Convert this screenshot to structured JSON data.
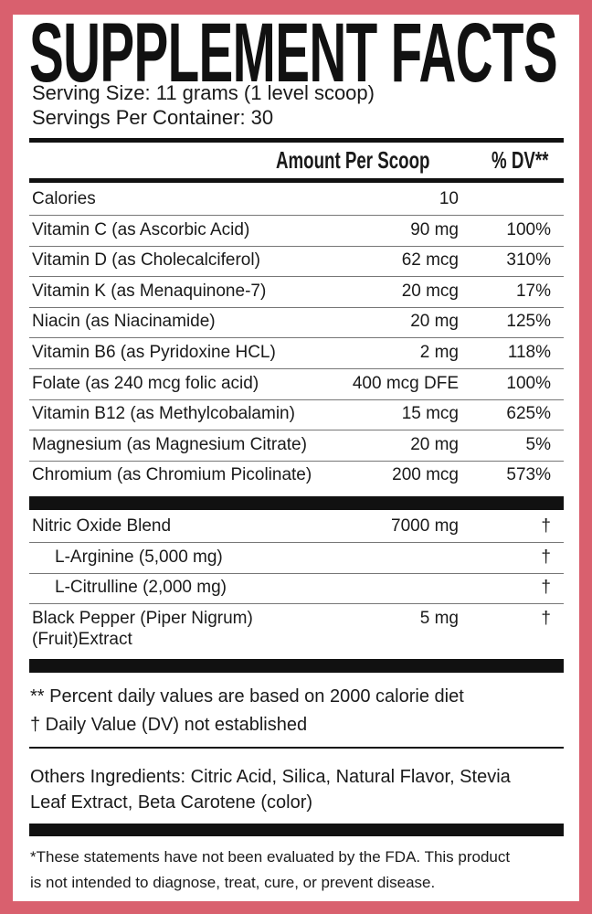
{
  "title": "SUPPLEMENT FACTS",
  "serving_size": "Serving Size: 11 grams (1 level scoop)",
  "servings_per_container": "Servings Per Container: 30",
  "header": {
    "amount": "Amount Per Scoop",
    "dv": "% DV**"
  },
  "nutrients": [
    {
      "name": "Calories",
      "amount": "10",
      "dv": ""
    },
    {
      "name": "Vitamin C (as Ascorbic Acid)",
      "amount": "90 mg",
      "dv": "100%"
    },
    {
      "name": "Vitamin D (as Cholecalciferol)",
      "amount": "62 mcg",
      "dv": "310%"
    },
    {
      "name": "Vitamin K (as Menaquinone-7)",
      "amount": "20 mcg",
      "dv": "17%"
    },
    {
      "name": "Niacin (as Niacinamide)",
      "amount": "20 mg",
      "dv": "125%"
    },
    {
      "name": "Vitamin B6 (as Pyridoxine HCL)",
      "amount": "2 mg",
      "dv": "118%"
    },
    {
      "name": "Folate (as 240 mcg folic acid)",
      "amount": "400 mcg DFE",
      "dv": "100%"
    },
    {
      "name": "Vitamin B12 (as Methylcobalamin)",
      "amount": "15 mcg",
      "dv": "625%"
    },
    {
      "name": "Magnesium (as Magnesium Citrate)",
      "amount": "20 mg",
      "dv": "5%"
    },
    {
      "name": "Chromium (as Chromium Picolinate)",
      "amount": "200 mcg",
      "dv": "573%"
    }
  ],
  "blend": [
    {
      "name": "Nitric Oxide Blend",
      "amount": "7000 mg",
      "dv": "†"
    },
    {
      "name": "L-Arginine (5,000 mg)",
      "amount": "",
      "dv": "†"
    },
    {
      "name": "L-Citrulline (2,000 mg)",
      "amount": "",
      "dv": "†"
    },
    {
      "name": "Black Pepper (Piper Nigrum)",
      "name2": "(Fruit)Extract",
      "amount": "5 mg",
      "dv": "†"
    }
  ],
  "footnotes": [
    "** Percent daily values are based on 2000 calorie diet",
    "† Daily Value (DV) not established"
  ],
  "other_ingredients": [
    "Others Ingredients: Citric Acid, Silica, Natural Flavor, Stevia",
    "Leaf Extract, Beta Carotene (color)"
  ],
  "disclaimer": [
    "*These statements have not been evaluated by the FDA. This product",
    "is not intended to diagnose, treat, cure, or prevent disease."
  ],
  "colors": {
    "border": "#d9606e",
    "ink": "#111111"
  }
}
